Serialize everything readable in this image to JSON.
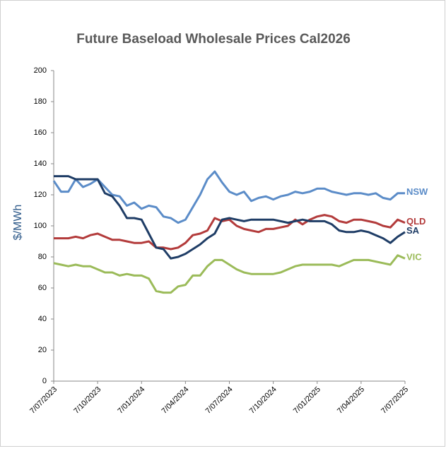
{
  "chart_data": {
    "type": "line",
    "title": "Future Baseload Wholesale Prices Cal2026",
    "y_label": "$/MWh",
    "categories": [
      "7/07/2023",
      null,
      null,
      null,
      null,
      null,
      "7/10/2023",
      null,
      null,
      null,
      null,
      null,
      "7/01/2024",
      null,
      null,
      null,
      null,
      null,
      "7/04/2024",
      null,
      null,
      null,
      null,
      null,
      "7/07/2024",
      null,
      null,
      null,
      null,
      null,
      "7/10/2024",
      null,
      null,
      null,
      null,
      null,
      "7/01/2025",
      null,
      null,
      null,
      null,
      null,
      "7/04/2025",
      null,
      null,
      null,
      null,
      null,
      "7/07/2025"
    ],
    "series": [
      {
        "name": "NSW",
        "color": "#5b8cc8",
        "values": [
          129,
          122,
          122,
          130,
          125,
          127,
          130,
          125,
          120,
          119,
          113,
          115,
          111,
          113,
          112,
          106,
          105,
          102,
          104,
          112,
          120,
          130,
          135,
          128,
          122,
          120,
          122,
          116,
          118,
          119,
          117,
          119,
          120,
          122,
          121,
          122,
          124,
          124,
          122,
          121,
          120,
          121,
          121,
          120,
          121,
          118,
          117,
          121,
          121
        ]
      },
      {
        "name": "QLD",
        "color": "#b33b3b",
        "values": [
          92,
          92,
          92,
          93,
          92,
          94,
          95,
          93,
          91,
          91,
          90,
          89,
          89,
          90,
          86,
          86,
          85,
          86,
          89,
          94,
          95,
          97,
          105,
          103,
          104,
          100,
          98,
          97,
          96,
          98,
          98,
          99,
          100,
          104,
          101,
          104,
          106,
          107,
          106,
          103,
          102,
          104,
          104,
          103,
          102,
          100,
          99,
          104,
          102
        ]
      },
      {
        "name": "SA",
        "color": "#1f3d66",
        "values": [
          132,
          132,
          132,
          130,
          130,
          130,
          130,
          121,
          119,
          113,
          105,
          105,
          104,
          95,
          86,
          85,
          79,
          80,
          82,
          85,
          88,
          92,
          95,
          104,
          105,
          104,
          103,
          104,
          104,
          104,
          104,
          103,
          102,
          103,
          104,
          103,
          103,
          103,
          101,
          97,
          96,
          96,
          97,
          96,
          94,
          92,
          89,
          93,
          96
        ]
      },
      {
        "name": "VIC",
        "color": "#9bbb59",
        "values": [
          76,
          75,
          74,
          75,
          74,
          74,
          72,
          70,
          70,
          68,
          69,
          68,
          68,
          66,
          58,
          57,
          57,
          61,
          62,
          68,
          68,
          74,
          78,
          78,
          75,
          72,
          70,
          69,
          69,
          69,
          69,
          70,
          72,
          74,
          75,
          75,
          75,
          75,
          75,
          74,
          76,
          78,
          78,
          78,
          77,
          76,
          75,
          81,
          79
        ]
      }
    ],
    "ylim": [
      0,
      200
    ],
    "yticks": [
      0,
      20,
      40,
      60,
      80,
      100,
      120,
      140,
      160,
      180,
      200
    ],
    "grid": false
  }
}
